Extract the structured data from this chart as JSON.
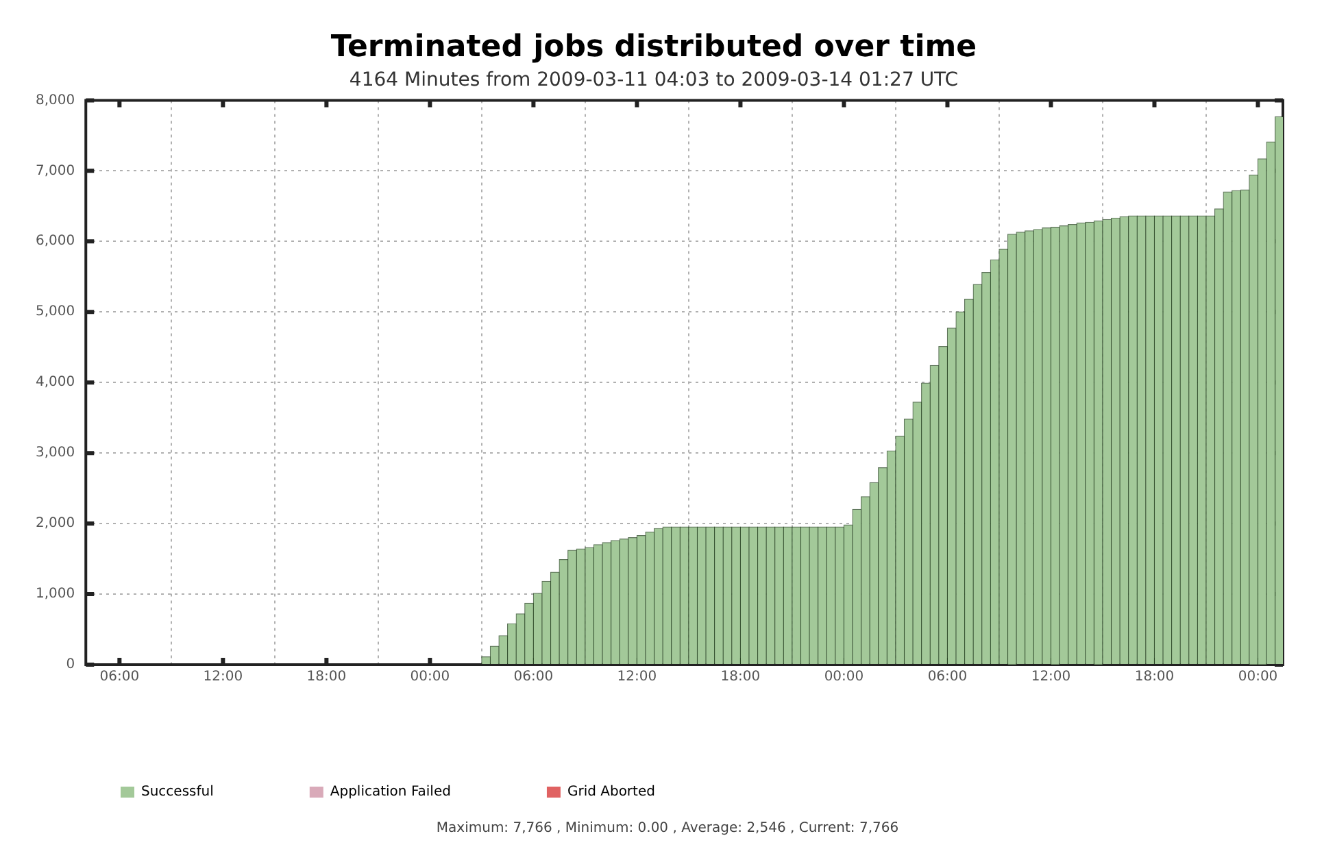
{
  "chart_data": {
    "type": "bar",
    "title": "Terminated jobs distributed over time",
    "subtitle": "4164 Minutes from 2009-03-11 04:03 to 2009-03-14 01:27 UTC",
    "grid": true,
    "legend": "bottom left",
    "x": [
      "2009-03-11T04:15",
      "2009-03-11T04:45",
      "2009-03-11T05:15",
      "2009-03-11T05:45",
      "2009-03-11T06:15",
      "2009-03-11T06:45",
      "2009-03-11T07:15",
      "2009-03-11T07:45",
      "2009-03-11T08:15",
      "2009-03-11T08:45",
      "2009-03-11T09:15",
      "2009-03-11T09:45",
      "2009-03-11T10:15",
      "2009-03-11T10:45",
      "2009-03-11T11:15",
      "2009-03-11T11:45",
      "2009-03-11T12:15",
      "2009-03-11T12:45",
      "2009-03-11T13:15",
      "2009-03-11T13:45",
      "2009-03-11T14:15",
      "2009-03-11T14:45",
      "2009-03-11T15:15",
      "2009-03-11T15:45",
      "2009-03-11T16:15",
      "2009-03-11T16:45",
      "2009-03-11T17:15",
      "2009-03-11T17:45",
      "2009-03-11T18:15",
      "2009-03-11T18:45",
      "2009-03-11T19:15",
      "2009-03-11T19:45",
      "2009-03-11T20:15",
      "2009-03-11T20:45",
      "2009-03-11T21:15",
      "2009-03-11T21:45",
      "2009-03-11T22:15",
      "2009-03-11T22:45",
      "2009-03-11T23:15",
      "2009-03-11T23:45",
      "2009-03-12T00:15",
      "2009-03-12T00:45",
      "2009-03-12T01:15",
      "2009-03-12T01:45",
      "2009-03-12T02:15",
      "2009-03-12T02:45",
      "2009-03-12T03:15",
      "2009-03-12T03:45",
      "2009-03-12T04:15",
      "2009-03-12T04:45",
      "2009-03-12T05:15",
      "2009-03-12T05:45",
      "2009-03-12T06:15",
      "2009-03-12T06:45",
      "2009-03-12T07:15",
      "2009-03-12T07:45",
      "2009-03-12T08:15",
      "2009-03-12T08:45",
      "2009-03-12T09:15",
      "2009-03-12T09:45",
      "2009-03-12T10:15",
      "2009-03-12T10:45",
      "2009-03-12T11:15",
      "2009-03-12T11:45",
      "2009-03-12T12:15",
      "2009-03-12T12:45",
      "2009-03-12T13:15",
      "2009-03-12T13:45",
      "2009-03-12T14:15",
      "2009-03-12T14:45",
      "2009-03-12T15:15",
      "2009-03-12T15:45",
      "2009-03-12T16:15",
      "2009-03-12T16:45",
      "2009-03-12T17:15",
      "2009-03-12T17:45",
      "2009-03-12T18:15",
      "2009-03-12T18:45",
      "2009-03-12T19:15",
      "2009-03-12T19:45",
      "2009-03-12T20:15",
      "2009-03-12T20:45",
      "2009-03-12T21:15",
      "2009-03-12T21:45",
      "2009-03-12T22:15",
      "2009-03-12T22:45",
      "2009-03-12T23:15",
      "2009-03-12T23:45",
      "2009-03-13T00:15",
      "2009-03-13T00:45",
      "2009-03-13T01:15",
      "2009-03-13T01:45",
      "2009-03-13T02:15",
      "2009-03-13T02:45",
      "2009-03-13T03:15",
      "2009-03-13T03:45",
      "2009-03-13T04:15",
      "2009-03-13T04:45",
      "2009-03-13T05:15",
      "2009-03-13T05:45",
      "2009-03-13T06:15",
      "2009-03-13T06:45",
      "2009-03-13T07:15",
      "2009-03-13T07:45",
      "2009-03-13T08:15",
      "2009-03-13T08:45",
      "2009-03-13T09:15",
      "2009-03-13T09:45",
      "2009-03-13T10:15",
      "2009-03-13T10:45",
      "2009-03-13T11:15",
      "2009-03-13T11:45",
      "2009-03-13T12:15",
      "2009-03-13T12:45",
      "2009-03-13T13:15",
      "2009-03-13T13:45",
      "2009-03-13T14:15",
      "2009-03-13T14:45",
      "2009-03-13T15:15",
      "2009-03-13T15:45",
      "2009-03-13T16:15",
      "2009-03-13T16:45",
      "2009-03-13T17:15",
      "2009-03-13T17:45",
      "2009-03-13T18:15",
      "2009-03-13T18:45",
      "2009-03-13T19:15",
      "2009-03-13T19:45",
      "2009-03-13T20:15",
      "2009-03-13T20:45",
      "2009-03-13T21:15",
      "2009-03-13T21:45",
      "2009-03-13T22:15",
      "2009-03-13T22:45",
      "2009-03-13T23:15",
      "2009-03-13T23:45",
      "2009-03-14T00:15",
      "2009-03-14T00:45",
      "2009-03-14T01:15"
    ],
    "series": [
      {
        "name": "Successful",
        "color": "#a3c999",
        "values": [
          0,
          0,
          0,
          0,
          0,
          0,
          0,
          0,
          0,
          0,
          0,
          0,
          0,
          0,
          0,
          0,
          0,
          0,
          0,
          0,
          0,
          0,
          0,
          0,
          0,
          0,
          0,
          0,
          0,
          0,
          0,
          0,
          0,
          0,
          0,
          0,
          0,
          0,
          0,
          0,
          0,
          0,
          0,
          0,
          0,
          0,
          110,
          260,
          410,
          580,
          720,
          870,
          1010,
          1180,
          1310,
          1490,
          1620,
          1640,
          1660,
          1700,
          1730,
          1760,
          1780,
          1800,
          1830,
          1880,
          1930,
          1950,
          1950,
          1950,
          1950,
          1950,
          1950,
          1950,
          1950,
          1950,
          1950,
          1950,
          1950,
          1950,
          1950,
          1950,
          1950,
          1950,
          1950,
          1950,
          1950,
          1950,
          1980,
          2200,
          2380,
          2580,
          2790,
          3030,
          3240,
          3480,
          3720,
          3990,
          4240,
          4510,
          4770,
          5000,
          5180,
          5390,
          5560,
          5740,
          5890,
          6100,
          6130,
          6150,
          6170,
          6190,
          6200,
          6220,
          6240,
          6260,
          6270,
          6290,
          6310,
          6330,
          6350,
          6360,
          6360,
          6360,
          6360,
          6360,
          6360,
          6360,
          6360,
          6360,
          6360,
          6460,
          6700,
          6720,
          6730,
          6940,
          7170,
          7410,
          7766
        ]
      },
      {
        "name": "Application Failed",
        "color": "#d9aab9",
        "values": [
          null,
          null,
          null,
          null,
          null,
          null,
          null,
          null,
          null,
          null,
          null,
          null,
          null,
          null,
          null,
          null,
          null,
          null,
          null,
          null,
          null,
          null,
          null,
          null,
          null,
          null,
          null,
          null,
          null,
          null,
          null,
          null,
          null,
          null,
          null,
          null,
          null,
          null,
          null,
          null,
          null,
          null,
          null,
          null,
          null,
          null,
          null,
          null,
          null,
          null,
          null,
          null,
          null,
          null,
          null,
          null,
          null,
          null,
          null,
          null,
          null,
          null,
          null,
          null,
          null,
          null,
          null,
          null,
          null,
          null,
          null,
          null,
          null,
          null,
          null,
          null,
          null,
          null,
          null,
          null,
          null,
          null,
          null,
          null,
          null,
          null,
          null,
          null,
          null,
          null,
          null,
          null,
          null,
          null,
          null,
          null,
          null,
          null,
          null,
          null,
          null,
          null,
          null,
          null,
          null,
          null,
          null,
          null,
          null,
          null,
          null,
          null,
          null,
          null,
          null,
          null,
          null,
          null,
          null,
          null,
          null,
          null,
          null,
          null,
          null,
          null,
          null,
          null,
          null,
          null,
          null,
          null,
          null,
          null,
          null,
          null,
          null,
          null,
          null
        ]
      },
      {
        "name": "Grid Aborted",
        "color": "#e06262",
        "values": [
          null,
          null,
          null,
          null,
          null,
          null,
          null,
          null,
          null,
          null,
          null,
          null,
          null,
          null,
          null,
          null,
          null,
          null,
          null,
          null,
          null,
          null,
          null,
          null,
          null,
          null,
          null,
          null,
          null,
          null,
          null,
          null,
          null,
          null,
          null,
          null,
          null,
          null,
          null,
          null,
          null,
          null,
          null,
          null,
          null,
          null,
          null,
          null,
          null,
          null,
          null,
          null,
          null,
          null,
          null,
          null,
          null,
          null,
          null,
          null,
          null,
          null,
          null,
          null,
          null,
          null,
          null,
          null,
          null,
          null,
          null,
          null,
          null,
          null,
          null,
          null,
          null,
          null,
          null,
          null,
          null,
          null,
          null,
          null,
          null,
          null,
          null,
          null,
          null,
          null,
          null,
          null,
          null,
          null,
          null,
          null,
          null,
          null,
          null,
          null,
          null,
          null,
          null,
          null,
          null,
          null,
          null,
          null,
          null,
          null,
          null,
          null,
          null,
          null,
          null,
          null,
          null,
          null,
          null,
          null,
          null,
          null,
          null,
          null,
          null,
          null,
          null,
          null,
          null,
          null,
          null,
          null,
          null,
          null,
          null,
          null,
          null,
          null,
          null
        ]
      }
    ],
    "xlim": [
      "2009-03-11T04:03",
      "2009-03-14T01:27"
    ],
    "xticks": [
      {
        "value": "2009-03-11T06:00",
        "label": "06:00"
      },
      {
        "value": "2009-03-11T12:00",
        "label": "12:00"
      },
      {
        "value": "2009-03-11T18:00",
        "label": "18:00"
      },
      {
        "value": "2009-03-12T00:00",
        "label": "00:00"
      },
      {
        "value": "2009-03-12T06:00",
        "label": "06:00"
      },
      {
        "value": "2009-03-12T12:00",
        "label": "12:00"
      },
      {
        "value": "2009-03-12T18:00",
        "label": "18:00"
      },
      {
        "value": "2009-03-13T00:00",
        "label": "00:00"
      },
      {
        "value": "2009-03-13T06:00",
        "label": "06:00"
      },
      {
        "value": "2009-03-13T12:00",
        "label": "12:00"
      },
      {
        "value": "2009-03-13T18:00",
        "label": "18:00"
      },
      {
        "value": "2009-03-14T00:00",
        "label": "00:00"
      }
    ],
    "ylim": [
      0,
      8000
    ],
    "yticks": [
      0,
      {
        "value": 1000,
        "label": "1,000"
      },
      {
        "value": 2000,
        "label": "2,000"
      },
      {
        "value": 3000,
        "label": "3,000"
      },
      {
        "value": 4000,
        "label": "4,000"
      },
      {
        "value": 5000,
        "label": "5,000"
      },
      {
        "value": 6000,
        "label": "6,000"
      },
      {
        "value": 7000,
        "label": "7,000"
      },
      {
        "value": 8000,
        "label": "8,000"
      }
    ],
    "annotations": [
      "Maximum: 7,766 , Minimum: 0.00 , Average: 2,546 , Current: 7,766"
    ]
  }
}
